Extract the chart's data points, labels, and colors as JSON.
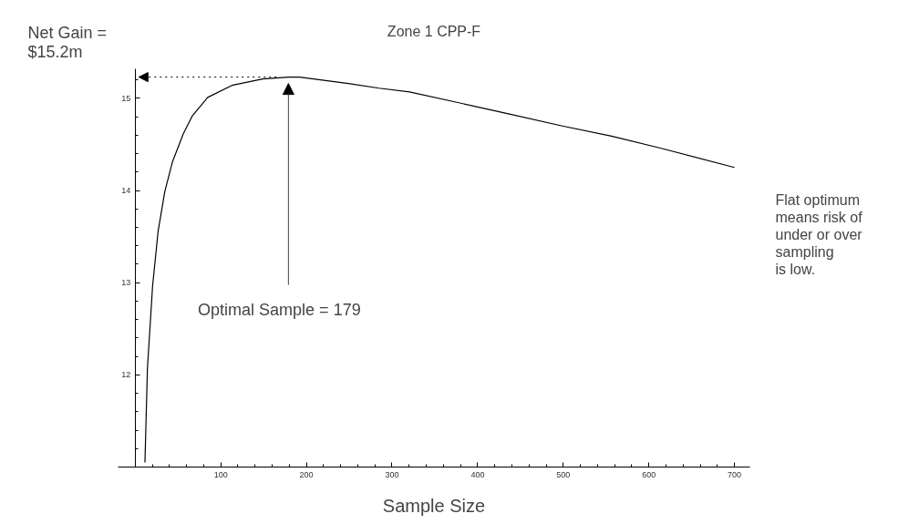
{
  "chart_data": {
    "type": "line",
    "title": "Zone 1 CPP-F",
    "xlabel": "Sample Size",
    "x": [
      11.4,
      14.3,
      20.3,
      26.8,
      34.6,
      43.5,
      56,
      66.8,
      84.7,
      113,
      149,
      179,
      191.9,
      249,
      284.7,
      320.5,
      432.3,
      499,
      556.3,
      613.4,
      700
    ],
    "series": [
      {
        "color": "#000000",
        "values": [
          11.05,
          12.07,
          12.96,
          13.56,
          13.99,
          14.31,
          14.61,
          14.81,
          15.01,
          15.14,
          15.21,
          15.23,
          15.23,
          15.16,
          15.11,
          15.07,
          14.84,
          14.7,
          14.59,
          14.46,
          14.25
        ]
      }
    ],
    "xlim": [
      -20,
      718
    ],
    "ylim": [
      11.0,
      15.32
    ],
    "xticks": [
      100,
      200,
      300,
      400,
      500,
      600,
      700
    ],
    "yticks": [
      12,
      13,
      14,
      15
    ],
    "grid": false,
    "marker": "none",
    "line_style": "solid",
    "annotations": [
      "Net Gain =\n$15.2m",
      {
        "text": "Optimal Sample = 179",
        "x": 179,
        "y": 15.2
      },
      "Flat optimum\nmeans risk of\nunder or over\nsampling\nis low."
    ]
  }
}
